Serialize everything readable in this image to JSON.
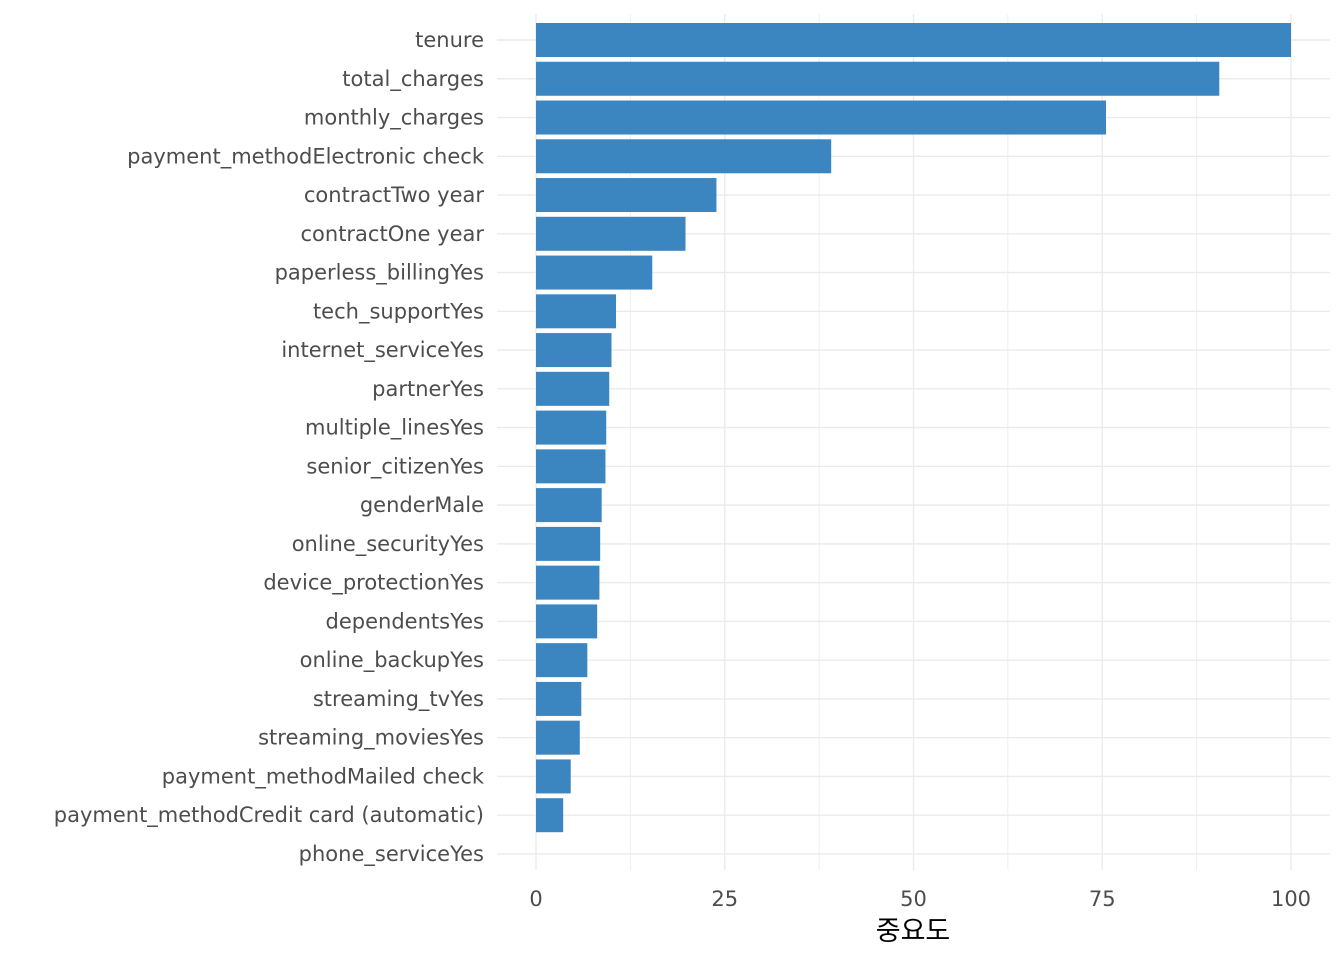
{
  "chart_data": {
    "type": "bar",
    "orientation": "horizontal",
    "title": "",
    "xlabel": "중요도",
    "ylabel": "",
    "xlim": [
      0,
      105
    ],
    "x_ticks": [
      0,
      25,
      50,
      75,
      100
    ],
    "grid": true,
    "colors": {
      "bar": "#3b86c0",
      "grid": "#ebebeb"
    },
    "categories": [
      "tenure",
      "total_charges",
      "monthly_charges",
      "payment_methodElectronic check",
      "contractTwo year",
      "contractOne year",
      "paperless_billingYes",
      "tech_supportYes",
      "internet_serviceYes",
      "partnerYes",
      "multiple_linesYes",
      "senior_citizenYes",
      "genderMale",
      "online_securityYes",
      "device_protectionYes",
      "dependentsYes",
      "online_backupYes",
      "streaming_tvYes",
      "streaming_moviesYes",
      "payment_methodMailed check",
      "payment_methodCredit card (automatic)",
      "phone_serviceYes"
    ],
    "values": [
      100,
      90.5,
      75.5,
      39.1,
      23.9,
      19.8,
      15.4,
      10.6,
      10.0,
      9.7,
      9.3,
      9.2,
      8.7,
      8.5,
      8.4,
      8.1,
      6.8,
      6.0,
      5.8,
      4.6,
      3.6,
      0
    ]
  }
}
